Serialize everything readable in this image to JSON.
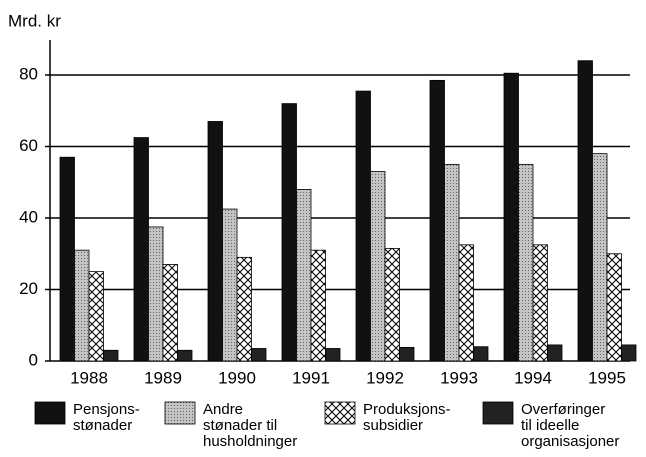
{
  "chart_data": {
    "type": "bar",
    "y_label": "Mrd. kr",
    "categories": [
      "1988",
      "1989",
      "1990",
      "1991",
      "1992",
      "1993",
      "1994",
      "1995"
    ],
    "series": [
      {
        "name": "Pensjons-\nstønader",
        "color": "#111111",
        "values": [
          57,
          62.5,
          67,
          72,
          75.5,
          78.5,
          80.5,
          84
        ]
      },
      {
        "name": "Andre\nstønader til\nhusholdninger",
        "color": "#c4c4c4",
        "values": [
          31,
          37.5,
          42.5,
          48,
          53,
          55,
          55,
          58
        ]
      },
      {
        "name": "Produksjons-\nsubsidier",
        "color": "#ffffff",
        "values": [
          25,
          27,
          29,
          31,
          31.5,
          32.5,
          32.5,
          30
        ]
      },
      {
        "name": "Overføringer\ntil ideelle\norganisasjoner",
        "color": "#222222",
        "values": [
          3,
          3,
          3.5,
          3.5,
          3.8,
          4,
          4.5,
          4.5
        ]
      }
    ],
    "ylim": [
      0,
      80
    ],
    "yticks": [
      0,
      20,
      40,
      60,
      80
    ],
    "grid": true
  }
}
